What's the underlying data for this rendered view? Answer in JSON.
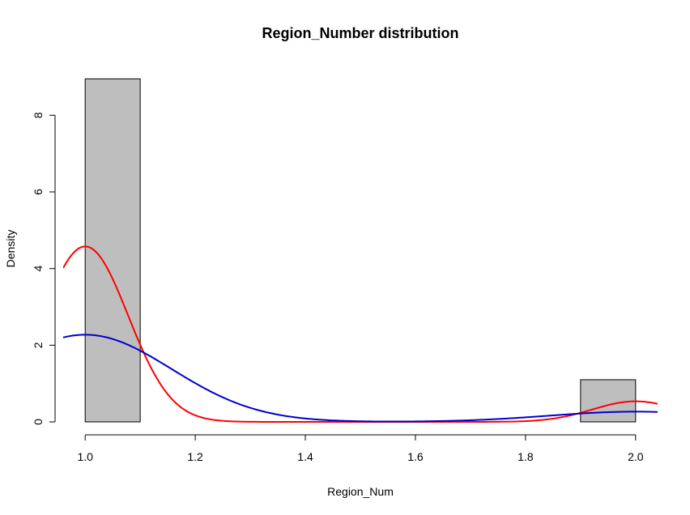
{
  "chart_data": {
    "type": "bar",
    "title": "Region_Number distribution",
    "xlabel": "Region_Num",
    "ylabel": "Density",
    "xlim": [
      0.96,
      2.04
    ],
    "ylim": [
      0,
      9
    ],
    "xticks": [
      1.0,
      1.2,
      1.4,
      1.6,
      1.8,
      2.0
    ],
    "xtick_labels": [
      "1.0",
      "1.2",
      "1.4",
      "1.6",
      "1.8",
      "2.0"
    ],
    "yticks": [
      0,
      2,
      4,
      6,
      8
    ],
    "ytick_labels": [
      "0",
      "2",
      "4",
      "6",
      "8"
    ],
    "grid": false,
    "bars": [
      {
        "x0": 1.0,
        "x1": 1.1,
        "density": 8.95
      },
      {
        "x0": 1.9,
        "x1": 2.0,
        "density": 1.1
      }
    ],
    "bar_fill": "#bebebe",
    "bar_stroke": "#000000",
    "series": [
      {
        "type": "line",
        "color": "#ff0000",
        "kind": "gaussian_mixture",
        "components": [
          {
            "weight": 0.895,
            "mean": 1.0,
            "sd": 0.078
          },
          {
            "weight": 0.105,
            "mean": 2.0,
            "sd": 0.078
          }
        ]
      },
      {
        "type": "line",
        "color": "#0000cc",
        "kind": "gaussian_mixture",
        "components": [
          {
            "weight": 0.895,
            "mean": 1.0,
            "sd": 0.157
          },
          {
            "weight": 0.105,
            "mean": 2.0,
            "sd": 0.157
          }
        ]
      }
    ]
  }
}
